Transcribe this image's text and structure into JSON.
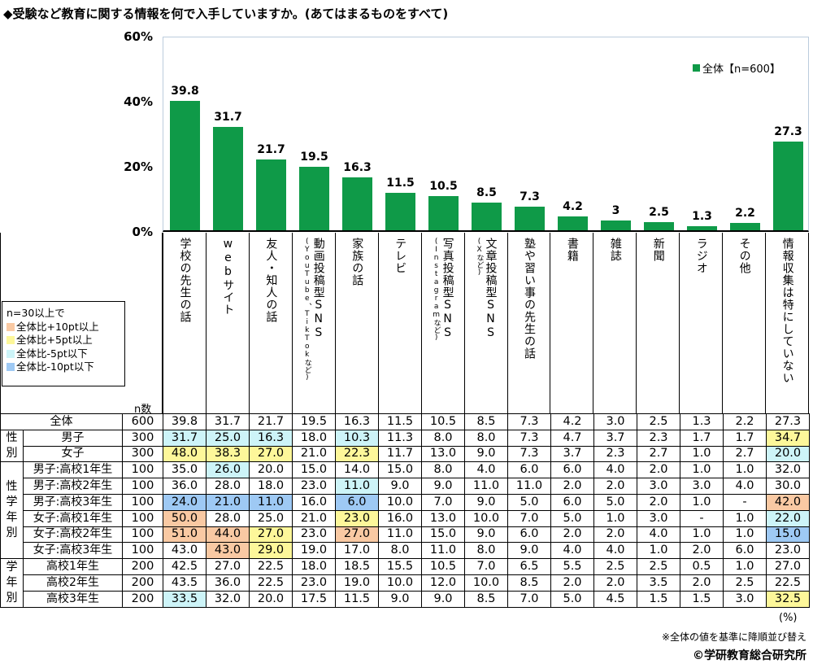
{
  "title": "◆受験など教育に関する情報を何で入手していますか。(あてはまるものをすべて)",
  "chart_data": {
    "type": "bar",
    "ylim": [
      0,
      60
    ],
    "yticks": [
      "0%",
      "20%",
      "40%",
      "60%"
    ],
    "categories": [
      {
        "main": "学校の先生の話",
        "sub": ""
      },
      {
        "main": "webサイト",
        "sub": ""
      },
      {
        "main": "友人・知人の話",
        "sub": ""
      },
      {
        "main": "動画投稿型SNS",
        "sub": "(YouTube、TikTokなど)"
      },
      {
        "main": "家族の話",
        "sub": ""
      },
      {
        "main": "テレビ",
        "sub": ""
      },
      {
        "main": "写真投稿型SNS",
        "sub": "(Instagramなど)"
      },
      {
        "main": "文章投稿型SNS",
        "sub": "(Xなど)"
      },
      {
        "main": "塾や習い事の先生の話",
        "sub": ""
      },
      {
        "main": "書籍",
        "sub": ""
      },
      {
        "main": "雑誌",
        "sub": ""
      },
      {
        "main": "新聞",
        "sub": ""
      },
      {
        "main": "ラジオ",
        "sub": ""
      },
      {
        "main": "その他",
        "sub": ""
      },
      {
        "main": "情報収集は特にしていない",
        "sub": ""
      }
    ],
    "series": [
      {
        "name": "全体【n=600】",
        "color": "#0f9a48",
        "values": [
          39.8,
          31.7,
          21.7,
          19.5,
          16.3,
          11.5,
          10.5,
          8.5,
          7.3,
          4.2,
          3.0,
          2.5,
          1.3,
          2.2,
          27.3
        ]
      }
    ],
    "legend_position": "top-right"
  },
  "color_legend": {
    "heading": "n=30以上で",
    "items": [
      {
        "code": "o",
        "label": "全体比+10pt以上",
        "color": "#f9c9a3"
      },
      {
        "code": "y",
        "label": "全体比+5pt以上",
        "color": "#fdf79a"
      },
      {
        "code": "c",
        "label": "全体比-5pt以下",
        "color": "#cdf4f8"
      },
      {
        "code": "b",
        "label": "全体比-10pt以下",
        "color": "#9ec9f4"
      }
    ]
  },
  "table": {
    "n_header": "n数",
    "groups": [
      {
        "label": "",
        "rows": [
          {
            "label": "全体",
            "n": "600",
            "values": [
              "39.8",
              "31.7",
              "21.7",
              "19.5",
              "16.3",
              "11.5",
              "10.5",
              "8.5",
              "7.3",
              "4.2",
              "3.0",
              "2.5",
              "1.3",
              "2.2",
              "27.3"
            ],
            "colors": [
              "",
              "",
              "",
              "",
              "",
              "",
              "",
              "",
              "",
              "",
              "",
              "",
              "",
              "",
              ""
            ]
          }
        ]
      },
      {
        "label": "性別",
        "rows": [
          {
            "label": "男子",
            "n": "300",
            "values": [
              "31.7",
              "25.0",
              "16.3",
              "18.0",
              "10.3",
              "11.3",
              "8.0",
              "8.0",
              "7.3",
              "4.7",
              "3.7",
              "2.3",
              "1.7",
              "1.7",
              "34.7"
            ],
            "colors": [
              "c",
              "c",
              "c",
              "",
              "c",
              "",
              "",
              "",
              "",
              "",
              "",
              "",
              "",
              "",
              "y"
            ]
          },
          {
            "label": "女子",
            "n": "300",
            "values": [
              "48.0",
              "38.3",
              "27.0",
              "21.0",
              "22.3",
              "11.7",
              "13.0",
              "9.0",
              "7.3",
              "3.7",
              "2.3",
              "2.7",
              "1.0",
              "2.7",
              "20.0"
            ],
            "colors": [
              "y",
              "y",
              "y",
              "",
              "y",
              "",
              "",
              "",
              "",
              "",
              "",
              "",
              "",
              "",
              "c"
            ]
          }
        ]
      },
      {
        "label": "性学年別",
        "rows": [
          {
            "label": "男子:高校1年生",
            "n": "100",
            "values": [
              "35.0",
              "26.0",
              "20.0",
              "15.0",
              "14.0",
              "15.0",
              "8.0",
              "4.0",
              "6.0",
              "6.0",
              "4.0",
              "2.0",
              "1.0",
              "1.0",
              "32.0"
            ],
            "colors": [
              "",
              "c",
              "",
              "",
              "",
              "",
              "",
              "",
              "",
              "",
              "",
              "",
              "",
              "",
              ""
            ]
          },
          {
            "label": "男子:高校2年生",
            "n": "100",
            "values": [
              "36.0",
              "28.0",
              "18.0",
              "23.0",
              "11.0",
              "9.0",
              "9.0",
              "11.0",
              "11.0",
              "2.0",
              "2.0",
              "3.0",
              "3.0",
              "4.0",
              "30.0"
            ],
            "colors": [
              "",
              "",
              "",
              "",
              "c",
              "",
              "",
              "",
              "",
              "",
              "",
              "",
              "",
              "",
              ""
            ]
          },
          {
            "label": "男子:高校3年生",
            "n": "100",
            "values": [
              "24.0",
              "21.0",
              "11.0",
              "16.0",
              "6.0",
              "10.0",
              "7.0",
              "9.0",
              "5.0",
              "6.0",
              "5.0",
              "2.0",
              "1.0",
              "-",
              "42.0"
            ],
            "colors": [
              "b",
              "b",
              "b",
              "",
              "b",
              "",
              "",
              "",
              "",
              "",
              "",
              "",
              "",
              "",
              "o"
            ]
          },
          {
            "label": "女子:高校1年生",
            "n": "100",
            "values": [
              "50.0",
              "28.0",
              "25.0",
              "21.0",
              "23.0",
              "16.0",
              "13.0",
              "10.0",
              "7.0",
              "5.0",
              "1.0",
              "3.0",
              "-",
              "1.0",
              "22.0"
            ],
            "colors": [
              "o",
              "",
              "",
              "",
              "y",
              "",
              "",
              "",
              "",
              "",
              "",
              "",
              "",
              "",
              "c"
            ]
          },
          {
            "label": "女子:高校2年生",
            "n": "100",
            "values": [
              "51.0",
              "44.0",
              "27.0",
              "23.0",
              "27.0",
              "11.0",
              "15.0",
              "9.0",
              "6.0",
              "2.0",
              "2.0",
              "4.0",
              "1.0",
              "1.0",
              "15.0"
            ],
            "colors": [
              "o",
              "o",
              "y",
              "",
              "o",
              "",
              "",
              "",
              "",
              "",
              "",
              "",
              "",
              "",
              "b"
            ]
          },
          {
            "label": "女子:高校3年生",
            "n": "100",
            "values": [
              "43.0",
              "43.0",
              "29.0",
              "19.0",
              "17.0",
              "8.0",
              "11.0",
              "8.0",
              "9.0",
              "4.0",
              "4.0",
              "1.0",
              "2.0",
              "6.0",
              "23.0"
            ],
            "colors": [
              "",
              "o",
              "y",
              "",
              "",
              "",
              "",
              "",
              "",
              "",
              "",
              "",
              "",
              "",
              ""
            ]
          }
        ]
      },
      {
        "label": "学年別",
        "rows": [
          {
            "label": "高校1年生",
            "n": "200",
            "values": [
              "42.5",
              "27.0",
              "22.5",
              "18.0",
              "18.5",
              "15.5",
              "10.5",
              "7.0",
              "6.5",
              "5.5",
              "2.5",
              "2.5",
              "0.5",
              "1.0",
              "27.0"
            ],
            "colors": [
              "",
              "",
              "",
              "",
              "",
              "",
              "",
              "",
              "",
              "",
              "",
              "",
              "",
              "",
              ""
            ]
          },
          {
            "label": "高校2年生",
            "n": "200",
            "values": [
              "43.5",
              "36.0",
              "22.5",
              "23.0",
              "19.0",
              "10.0",
              "12.0",
              "10.0",
              "8.5",
              "2.0",
              "2.0",
              "3.5",
              "2.0",
              "2.5",
              "22.5"
            ],
            "colors": [
              "",
              "",
              "",
              "",
              "",
              "",
              "",
              "",
              "",
              "",
              "",
              "",
              "",
              "",
              ""
            ]
          },
          {
            "label": "高校3年生",
            "n": "200",
            "values": [
              "33.5",
              "32.0",
              "20.0",
              "17.5",
              "11.5",
              "9.0",
              "9.0",
              "8.5",
              "7.0",
              "5.0",
              "4.5",
              "1.5",
              "1.5",
              "3.0",
              "32.5"
            ],
            "colors": [
              "c",
              "",
              "",
              "",
              "",
              "",
              "",
              "",
              "",
              "",
              "",
              "",
              "",
              "",
              "y"
            ]
          }
        ]
      }
    ]
  },
  "footer": {
    "unit": "(%)",
    "note": "※全体の値を基準に降順並び替え",
    "copyright": "©学研教育総合研究所"
  }
}
